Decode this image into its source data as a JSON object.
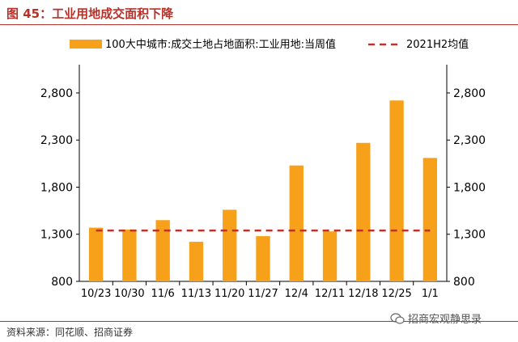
{
  "figure": {
    "title": "图 45：工业用地成交面积下降",
    "source": "资料来源：同花顺、招商证券",
    "watermark": "招商宏观静思录",
    "watermark_icon": "wechat-icon"
  },
  "colors": {
    "bar": "#f7a11a",
    "avg_line": "#c0312b",
    "title": "#b5322b",
    "axis": "#000000"
  },
  "chart_data": {
    "type": "bar",
    "categories": [
      "10/23",
      "10/30",
      "11/6",
      "11/13",
      "11/20",
      "11/27",
      "12/4",
      "12/11",
      "12/18",
      "12/25",
      "1/1"
    ],
    "series": [
      {
        "name": "100大中城市:成交土地占地面积:工业用地:当周值",
        "type": "bar",
        "values": [
          1370,
          1350,
          1450,
          1220,
          1560,
          1280,
          2030,
          1330,
          2270,
          2720,
          2110
        ]
      },
      {
        "name": "2021H2均值",
        "type": "line",
        "style": "dashed",
        "values": [
          1340,
          1340,
          1340,
          1340,
          1340,
          1340,
          1340,
          1340,
          1340,
          1340,
          1340
        ]
      }
    ],
    "ylim": [
      800,
      3100
    ],
    "yticks": [
      800,
      1300,
      1800,
      2300,
      2800
    ],
    "ytick_labels": [
      "800",
      "1,300",
      "1,800",
      "2,300",
      "2,800"
    ],
    "secondary_y": true,
    "legend_position": "top",
    "grid": false
  }
}
